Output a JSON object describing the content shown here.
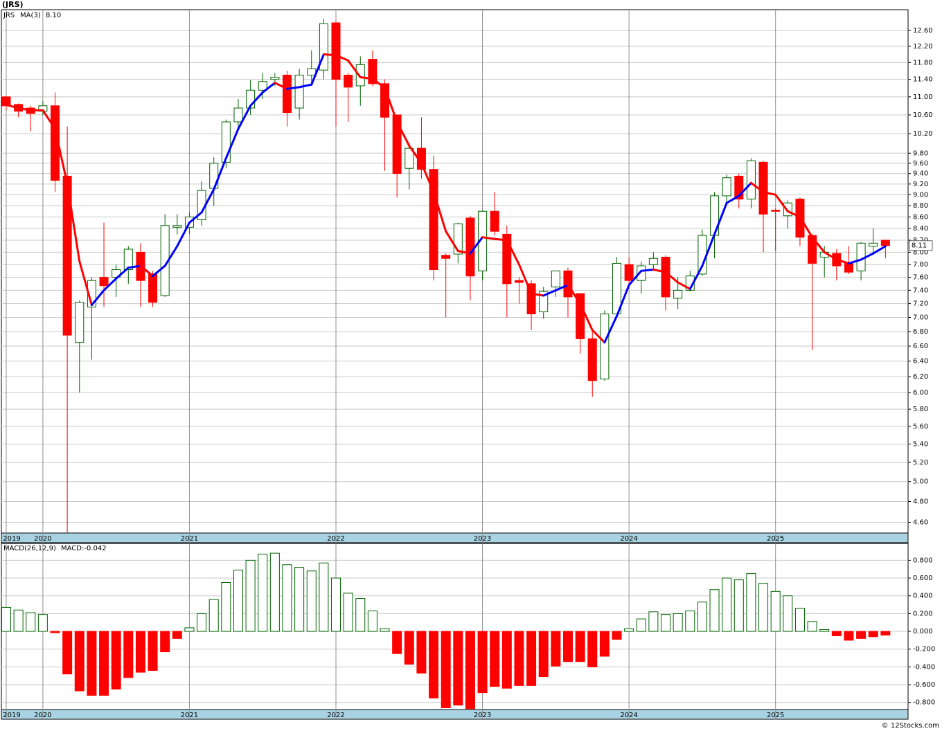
{
  "chart_data": [
    {
      "type": "candlestick",
      "title": "(JRS)",
      "legend_name": "JRS",
      "categories": [
        "2019",
        null,
        null,
        "2020",
        null,
        null,
        null,
        null,
        null,
        null,
        null,
        null,
        null,
        null,
        null,
        "2021",
        null,
        null,
        null,
        null,
        null,
        null,
        null,
        null,
        null,
        null,
        null,
        "2022",
        null,
        null,
        null,
        null,
        null,
        null,
        null,
        null,
        null,
        null,
        null,
        "2023",
        null,
        null,
        null,
        null,
        null,
        null,
        null,
        null,
        null,
        null,
        null,
        "2024",
        null,
        null,
        null,
        null,
        null,
        null,
        null,
        null,
        null,
        null,
        null,
        "2025",
        null,
        null,
        null,
        null,
        null,
        null,
        null,
        null,
        null
      ],
      "open": [
        11.0,
        10.83,
        10.75,
        10.68,
        10.8,
        9.35,
        6.65,
        7.15,
        7.6,
        7.6,
        7.72,
        8.0,
        7.65,
        7.32,
        8.42,
        8.42,
        8.55,
        9.12,
        9.62,
        10.45,
        10.75,
        11.15,
        11.4,
        11.5,
        10.75,
        11.5,
        11.62,
        12.8,
        11.5,
        11.25,
        11.88,
        11.3,
        10.6,
        9.5,
        9.9,
        9.48,
        7.95,
        7.97,
        8.58,
        7.7,
        8.7,
        8.3,
        7.55,
        7.5,
        7.08,
        7.45,
        7.7,
        7.35,
        6.7,
        6.17,
        7.05,
        7.8,
        7.55,
        7.8,
        7.92,
        7.28,
        7.4,
        7.65,
        8.28,
        8.98,
        9.35,
        8.92,
        9.62,
        8.72,
        8.62,
        8.92,
        8.28,
        7.92,
        7.98,
        7.82,
        7.7,
        8.1,
        8.2
      ],
      "high": [
        11.02,
        10.85,
        10.8,
        10.9,
        11.1,
        10.35,
        7.25,
        7.6,
        8.5,
        7.8,
        8.1,
        8.15,
        7.7,
        8.65,
        8.65,
        8.68,
        9.25,
        9.72,
        10.5,
        10.95,
        11.38,
        11.55,
        11.55,
        11.6,
        11.65,
        12.1,
        12.9,
        12.85,
        11.55,
        11.95,
        12.1,
        11.4,
        10.6,
        10.0,
        10.55,
        9.75,
        7.98,
        8.5,
        8.62,
        8.72,
        9.05,
        8.45,
        7.6,
        7.55,
        7.45,
        7.7,
        7.75,
        7.35,
        6.8,
        7.1,
        7.92,
        7.92,
        7.85,
        8.0,
        7.95,
        7.6,
        7.7,
        8.38,
        9.05,
        9.38,
        9.4,
        9.7,
        9.65,
        8.75,
        8.9,
        8.95,
        8.3,
        8.1,
        8.05,
        8.1,
        8.17,
        8.4,
        8.2
      ],
      "low": [
        10.7,
        10.55,
        10.25,
        10.6,
        9.05,
        4.45,
        6.0,
        6.42,
        7.15,
        7.3,
        7.5,
        7.15,
        7.15,
        7.3,
        8.3,
        8.3,
        8.45,
        8.8,
        9.5,
        10.3,
        10.6,
        10.95,
        11.25,
        10.35,
        10.5,
        11.25,
        11.4,
        10.35,
        10.45,
        10.8,
        11.25,
        9.45,
        8.95,
        9.1,
        9.3,
        7.55,
        7.0,
        7.82,
        7.25,
        7.55,
        8.28,
        7.0,
        7.2,
        6.82,
        6.98,
        7.3,
        7.0,
        6.5,
        5.95,
        6.15,
        7.0,
        7.42,
        7.35,
        7.7,
        7.1,
        7.12,
        7.38,
        7.62,
        7.9,
        8.82,
        8.75,
        8.75,
        8.0,
        8.02,
        8.4,
        8.1,
        6.55,
        7.6,
        7.55,
        7.65,
        7.55,
        8.0,
        7.9
      ],
      "close": [
        10.8,
        10.68,
        10.63,
        10.8,
        9.27,
        6.75,
        7.22,
        7.55,
        7.47,
        7.72,
        8.05,
        7.55,
        7.22,
        8.45,
        8.45,
        8.6,
        9.08,
        9.6,
        10.45,
        10.75,
        11.15,
        11.35,
        11.45,
        10.65,
        11.5,
        11.65,
        12.78,
        11.4,
        11.22,
        11.75,
        11.3,
        10.55,
        9.4,
        9.9,
        9.48,
        7.72,
        7.9,
        8.48,
        7.62,
        8.7,
        8.35,
        7.5,
        7.52,
        7.05,
        7.38,
        7.7,
        7.3,
        6.7,
        6.15,
        7.05,
        7.82,
        7.55,
        7.78,
        7.9,
        7.3,
        7.4,
        7.62,
        8.28,
        8.98,
        9.32,
        8.92,
        9.65,
        8.65,
        8.7,
        8.85,
        8.25,
        7.82,
        8.0,
        7.78,
        7.68,
        8.15,
        8.15,
        8.11
      ],
      "up_color": "#006400",
      "down_color": "#ff0000",
      "legend_color": "#008000",
      "ma": {
        "name": "MA(3)",
        "last_text": "8.10",
        "up_color": "#0000ff",
        "down_color": "#ff0000",
        "label_color": "#0000cc",
        "values": [
          10.82,
          10.75,
          10.7,
          10.7,
          10.3,
          9.2,
          7.85,
          7.18,
          7.4,
          7.58,
          7.75,
          7.78,
          7.62,
          7.78,
          8.1,
          8.5,
          8.68,
          9.1,
          9.7,
          10.3,
          10.8,
          11.1,
          11.32,
          11.18,
          11.22,
          11.28,
          12.0,
          11.98,
          11.85,
          11.45,
          11.42,
          11.2,
          10.45,
          9.95,
          9.6,
          9.05,
          8.35,
          8.02,
          7.98,
          8.25,
          8.22,
          8.2,
          7.8,
          7.35,
          7.32,
          7.4,
          7.48,
          7.2,
          6.82,
          6.65,
          7.02,
          7.48,
          7.7,
          7.72,
          7.68,
          7.52,
          7.42,
          7.78,
          8.3,
          8.85,
          8.98,
          9.22,
          9.05,
          9.0,
          8.7,
          8.6,
          8.25,
          8.0,
          7.88,
          7.82,
          7.88,
          7.98,
          8.1
        ]
      },
      "last_price": {
        "value": 8.11,
        "label": "8.11"
      },
      "ylim": [
        4.5,
        13.15
      ],
      "log": true,
      "grid": true,
      "yticks": [
        {
          "value": 4.6,
          "label": "4.60"
        },
        {
          "value": 4.8,
          "label": "4.80"
        },
        {
          "value": 5.0,
          "label": "5.00"
        },
        {
          "value": 5.2,
          "label": "5.20"
        },
        {
          "value": 5.4,
          "label": "5.40"
        },
        {
          "value": 5.6,
          "label": "5.60"
        },
        {
          "value": 5.8,
          "label": "5.80"
        },
        {
          "value": 6.0,
          "label": "6.00"
        },
        {
          "value": 6.2,
          "label": "6.20"
        },
        {
          "value": 6.4,
          "label": "6.40"
        },
        {
          "value": 6.6,
          "label": "6.60"
        },
        {
          "value": 6.8,
          "label": "6.80"
        },
        {
          "value": 7.0,
          "label": "7.00"
        },
        {
          "value": 7.2,
          "label": "7.20"
        },
        {
          "value": 7.4,
          "label": "7.40"
        },
        {
          "value": 7.6,
          "label": "7.60"
        },
        {
          "value": 7.8,
          "label": "7.80"
        },
        {
          "value": 8.0,
          "label": "8.00"
        },
        {
          "value": 8.2,
          "label": "8.20"
        },
        {
          "value": 8.4,
          "label": "8.40"
        },
        {
          "value": 8.6,
          "label": "8.60"
        },
        {
          "value": 8.8,
          "label": "8.80"
        },
        {
          "value": 9.0,
          "label": "9.00"
        },
        {
          "value": 9.2,
          "label": "9.20"
        },
        {
          "value": 9.4,
          "label": "9.40"
        },
        {
          "value": 9.6,
          "label": "9.60"
        },
        {
          "value": 9.8,
          "label": "9.80"
        },
        {
          "value": 10.2,
          "label": "10.20"
        },
        {
          "value": 10.6,
          "label": "10.60"
        },
        {
          "value": 11.0,
          "label": "11.00"
        },
        {
          "value": 11.4,
          "label": "11.40"
        },
        {
          "value": 11.8,
          "label": "11.80"
        },
        {
          "value": 12.2,
          "label": "12.20"
        },
        {
          "value": 12.6,
          "label": "12.60"
        }
      ]
    },
    {
      "type": "bar",
      "name": "MACD(26,12,9)",
      "value_text": "MACD:-0.042",
      "categories": [
        "2019",
        null,
        null,
        "2020",
        null,
        null,
        null,
        null,
        null,
        null,
        null,
        null,
        null,
        null,
        null,
        "2021",
        null,
        null,
        null,
        null,
        null,
        null,
        null,
        null,
        null,
        null,
        null,
        "2022",
        null,
        null,
        null,
        null,
        null,
        null,
        null,
        null,
        null,
        null,
        null,
        "2023",
        null,
        null,
        null,
        null,
        null,
        null,
        null,
        null,
        null,
        null,
        null,
        "2024",
        null,
        null,
        null,
        null,
        null,
        null,
        null,
        null,
        null,
        null,
        null,
        "2025",
        null,
        null,
        null,
        null,
        null,
        null,
        null,
        null,
        null
      ],
      "values": [
        0.27,
        0.24,
        0.21,
        0.19,
        -0.015,
        -0.48,
        -0.67,
        -0.72,
        -0.72,
        -0.65,
        -0.52,
        -0.46,
        -0.44,
        -0.23,
        -0.08,
        0.04,
        0.2,
        0.36,
        0.55,
        0.69,
        0.8,
        0.87,
        0.88,
        0.75,
        0.72,
        0.68,
        0.77,
        0.6,
        0.43,
        0.37,
        0.23,
        0.03,
        -0.25,
        -0.37,
        -0.47,
        -0.75,
        -0.86,
        -0.83,
        -0.87,
        -0.69,
        -0.62,
        -0.64,
        -0.61,
        -0.61,
        -0.51,
        -0.39,
        -0.34,
        -0.34,
        -0.4,
        -0.28,
        -0.09,
        0.03,
        0.14,
        0.22,
        0.19,
        0.2,
        0.23,
        0.33,
        0.47,
        0.6,
        0.58,
        0.65,
        0.54,
        0.45,
        0.4,
        0.26,
        0.11,
        0.02,
        -0.05,
        -0.1,
        -0.08,
        -0.06,
        -0.042
      ],
      "up_color": "#006400",
      "down_color": "#ff0000",
      "label_color": "#0000cc",
      "ylim": [
        -0.88,
        0.99
      ],
      "grid": true,
      "yticks": [
        {
          "value": -0.8,
          "label": "-0.800"
        },
        {
          "value": -0.6,
          "label": "-0.600"
        },
        {
          "value": -0.4,
          "label": "-0.400"
        },
        {
          "value": -0.2,
          "label": "-0.200"
        },
        {
          "value": 0,
          "label": "0.000"
        },
        {
          "value": 0.2,
          "label": "0.200"
        },
        {
          "value": 0.4,
          "label": "0.400"
        },
        {
          "value": 0.6,
          "label": "0.600"
        },
        {
          "value": 0.8,
          "label": "0.800"
        }
      ]
    }
  ],
  "footer": "© 12Stocks.com"
}
